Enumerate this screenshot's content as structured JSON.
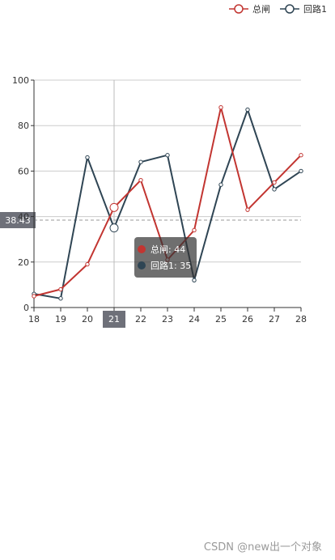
{
  "chart_data": {
    "type": "line",
    "categories": [
      "18",
      "19",
      "20",
      "21",
      "22",
      "23",
      "24",
      "25",
      "26",
      "27",
      "28"
    ],
    "series": [
      {
        "name": "总闸",
        "color": "#c23531",
        "values": [
          5,
          8,
          19,
          44,
          56,
          21,
          34,
          88,
          43,
          55,
          67
        ]
      },
      {
        "name": "回路1",
        "color": "#2f4554",
        "values": [
          6,
          4,
          66,
          35,
          64,
          67,
          12,
          54,
          87,
          52,
          60
        ]
      }
    ],
    "ylim": [
      0,
      100
    ],
    "y_ticks": [
      0,
      20,
      40,
      60,
      80,
      100
    ],
    "grid": true,
    "legend_position": "top-right",
    "axis_pointer": {
      "category": "21",
      "y_value_label": "38.43",
      "y_value": 38.43
    },
    "tooltip": {
      "lines": [
        "总闸: 44",
        "回路1: 35"
      ]
    }
  },
  "watermark": "CSDN @new出一个对象"
}
